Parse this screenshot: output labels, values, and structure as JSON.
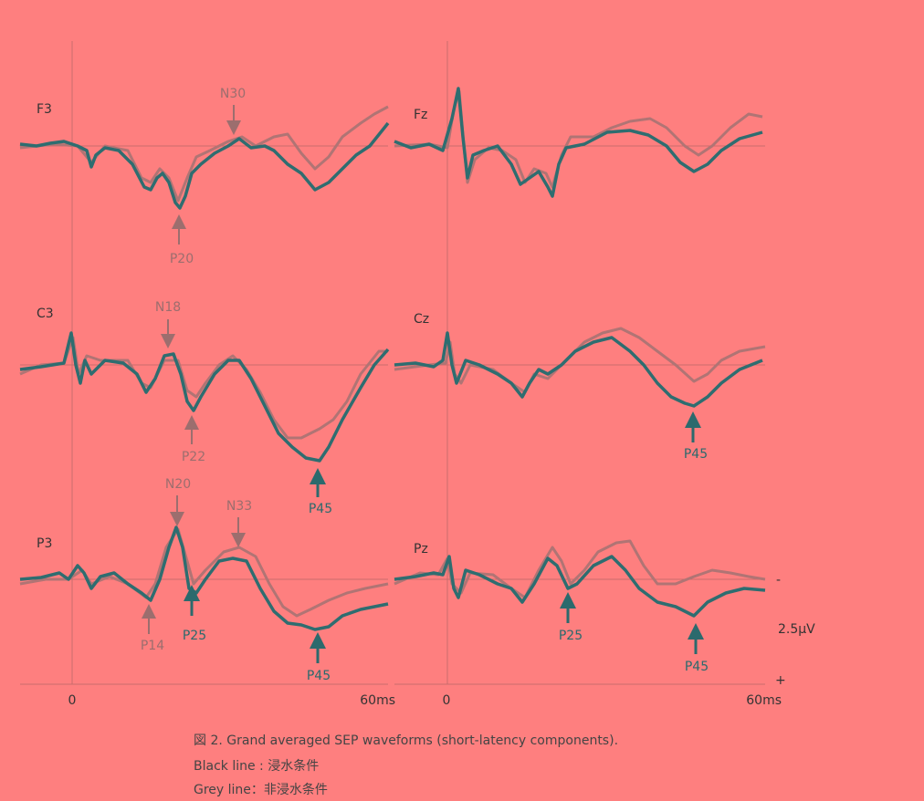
{
  "panels": [
    {
      "label": "F3",
      "annotations": [
        "N30",
        "P20"
      ]
    },
    {
      "label": "Fz",
      "annotations": []
    },
    {
      "label": "C3",
      "annotations": [
        "N18",
        "P22",
        "P45"
      ]
    },
    {
      "label": "Cz",
      "annotations": [
        "P45"
      ]
    },
    {
      "label": "P3",
      "annotations": [
        "N20",
        "N33",
        "P14",
        "P25",
        "P45"
      ]
    },
    {
      "label": "Pz",
      "annotations": [
        "P25",
        "P45"
      ]
    }
  ],
  "axes": {
    "left": {
      "start": "0",
      "end": "60ms"
    },
    "right": {
      "start": "0",
      "end": "60ms"
    }
  },
  "scale": {
    "minus": "-",
    "value": "2.5μV",
    "plus": "+"
  },
  "caption": [
    "図 2. Grand averaged SEP waveforms (short-latency components).",
    "Black line : 浸水条件",
    "Grey line：非浸水条件"
  ]
}
